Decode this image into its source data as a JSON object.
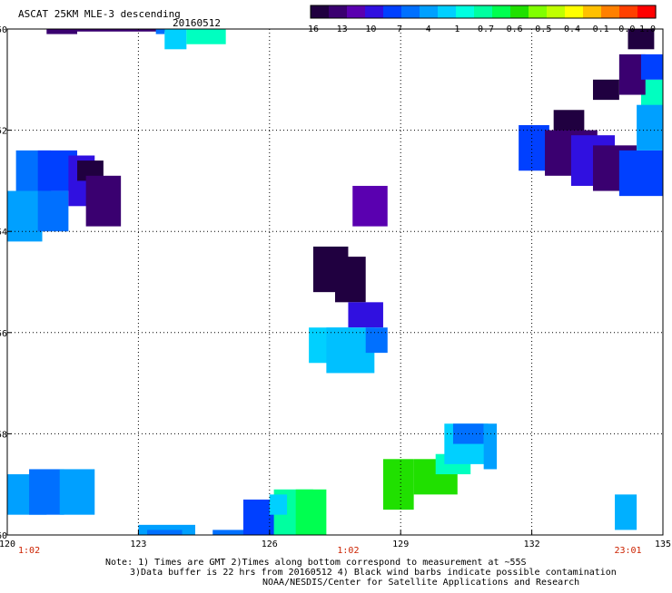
{
  "header": {
    "title": "ASCAT 25KM MLE-3 descending",
    "date": "20160512"
  },
  "colorbar": {
    "colors": [
      "#200040",
      "#3a0070",
      "#5a00b0",
      "#3010e0",
      "#0040ff",
      "#0070ff",
      "#00a0ff",
      "#00d0ff",
      "#00ffe0",
      "#00ffa0",
      "#00ff50",
      "#20e000",
      "#80ff00",
      "#c0ff00",
      "#ffff00",
      "#ffc000",
      "#ff8000",
      "#ff4000",
      "#ff0000"
    ],
    "tick_labels": [
      "-16",
      "-13",
      "-10",
      "-7",
      "-4",
      "-1",
      "-0.7",
      "-0.6",
      "-0.5",
      "-0.4",
      "-0.1",
      "0.0",
      "1.0"
    ]
  },
  "chart_data": {
    "type": "heatmap",
    "xlim": [
      120,
      135
    ],
    "ylim": [
      -60,
      -50
    ],
    "x_ticks": [
      "120",
      "123",
      "126",
      "129",
      "132",
      "135"
    ],
    "y_ticks": [
      "-50",
      "-52",
      "-54",
      "-56",
      "-58",
      "-60"
    ],
    "x_tick_values": [
      120,
      123,
      126,
      129,
      132,
      135
    ],
    "y_tick_values": [
      -50,
      -52,
      -54,
      -56,
      -58,
      -60
    ],
    "grid": true,
    "time_labels": [
      {
        "lon": 120.5,
        "text": "1:02"
      },
      {
        "lon": 127.8,
        "text": "1:02"
      },
      {
        "lon": 134.2,
        "text": "23:01"
      }
    ],
    "cells": [
      {
        "lon": [
          120.9,
          121.6
        ],
        "lat": [
          -50.0,
          -50.1
        ],
        "c": "#3a0070"
      },
      {
        "lon": [
          121.6,
          124.0
        ],
        "lat": [
          -50.0,
          -50.05
        ],
        "c": "#3a0070"
      },
      {
        "lon": [
          123.4,
          123.6
        ],
        "lat": [
          -50.0,
          -50.1
        ],
        "c": "#0070ff"
      },
      {
        "lon": [
          123.6,
          124.1
        ],
        "lat": [
          -50.0,
          -50.4
        ],
        "c": "#00d0ff"
      },
      {
        "lon": [
          124.1,
          125.0
        ],
        "lat": [
          -50.0,
          -50.3
        ],
        "c": "#00ffc0"
      },
      {
        "lon": [
          120.2,
          121.0
        ],
        "lat": [
          -52.4,
          -53.8
        ],
        "c": "#0070ff"
      },
      {
        "lon": [
          120.0,
          120.8
        ],
        "lat": [
          -53.2,
          -54.2
        ],
        "c": "#00a0ff"
      },
      {
        "lon": [
          120.7,
          121.6
        ],
        "lat": [
          -52.4,
          -53.2
        ],
        "c": "#0040ff"
      },
      {
        "lon": [
          120.7,
          121.4
        ],
        "lat": [
          -53.2,
          -54.0
        ],
        "c": "#0070ff"
      },
      {
        "lon": [
          121.4,
          122.0
        ],
        "lat": [
          -52.5,
          -53.5
        ],
        "c": "#3010e0"
      },
      {
        "lon": [
          121.6,
          122.2
        ],
        "lat": [
          -52.6,
          -53.0
        ],
        "c": "#200040"
      },
      {
        "lon": [
          121.8,
          122.6
        ],
        "lat": [
          -52.9,
          -53.9
        ],
        "c": "#3a0070"
      },
      {
        "lon": [
          127.0,
          127.8
        ],
        "lat": [
          -54.3,
          -55.2
        ],
        "c": "#200040"
      },
      {
        "lon": [
          127.5,
          128.2
        ],
        "lat": [
          -54.5,
          -55.4
        ],
        "c": "#200040"
      },
      {
        "lon": [
          127.9,
          128.7
        ],
        "lat": [
          -53.1,
          -53.9
        ],
        "c": "#5a00b0"
      },
      {
        "lon": [
          127.8,
          128.6
        ],
        "lat": [
          -55.4,
          -55.9
        ],
        "c": "#3010e0"
      },
      {
        "lon": [
          126.9,
          127.9
        ],
        "lat": [
          -55.9,
          -56.6
        ],
        "c": "#00d0ff"
      },
      {
        "lon": [
          127.3,
          128.4
        ],
        "lat": [
          -55.9,
          -56.8
        ],
        "c": "#00c0ff"
      },
      {
        "lon": [
          128.2,
          128.7
        ],
        "lat": [
          -55.9,
          -56.4
        ],
        "c": "#0070ff"
      },
      {
        "lon": [
          128.6,
          129.3
        ],
        "lat": [
          -58.5,
          -59.5
        ],
        "c": "#20e000"
      },
      {
        "lon": [
          129.3,
          130.3
        ],
        "lat": [
          -58.5,
          -59.2
        ],
        "c": "#20e000"
      },
      {
        "lon": [
          129.8,
          130.6
        ],
        "lat": [
          -58.4,
          -58.8
        ],
        "c": "#00ffc0"
      },
      {
        "lon": [
          130.0,
          131.0
        ],
        "lat": [
          -57.8,
          -58.6
        ],
        "c": "#00d0ff"
      },
      {
        "lon": [
          130.2,
          130.9
        ],
        "lat": [
          -57.8,
          -58.2
        ],
        "c": "#0070ff"
      },
      {
        "lon": [
          130.9,
          131.2
        ],
        "lat": [
          -57.8,
          -58.7
        ],
        "c": "#00a0ff"
      },
      {
        "lon": [
          120.0,
          120.9
        ],
        "lat": [
          -58.8,
          -59.6
        ],
        "c": "#00a0ff"
      },
      {
        "lon": [
          120.5,
          121.3
        ],
        "lat": [
          -58.7,
          -59.6
        ],
        "c": "#0070ff"
      },
      {
        "lon": [
          121.2,
          122.0
        ],
        "lat": [
          -58.7,
          -59.6
        ],
        "c": "#00a0ff"
      },
      {
        "lon": [
          123.0,
          124.3
        ],
        "lat": [
          -59.8,
          -60.0
        ],
        "c": "#00a0ff"
      },
      {
        "lon": [
          123.2,
          124.0
        ],
        "lat": [
          -59.9,
          -60.0
        ],
        "c": "#0070ff"
      },
      {
        "lon": [
          124.7,
          125.6
        ],
        "lat": [
          -59.9,
          -60.0
        ],
        "c": "#0070ff"
      },
      {
        "lon": [
          125.4,
          126.4
        ],
        "lat": [
          -59.3,
          -60.0
        ],
        "c": "#0040ff"
      },
      {
        "lon": [
          126.1,
          127.0
        ],
        "lat": [
          -59.1,
          -60.0
        ],
        "c": "#00ffa0"
      },
      {
        "lon": [
          126.6,
          127.3
        ],
        "lat": [
          -59.1,
          -60.0
        ],
        "c": "#00ff50"
      },
      {
        "lon": [
          126.0,
          126.4
        ],
        "lat": [
          -59.2,
          -59.6
        ],
        "c": "#00d0ff"
      },
      {
        "lon": [
          132.5,
          133.2
        ],
        "lat": [
          -51.6,
          -52.4
        ],
        "c": "#200040"
      },
      {
        "lon": [
          131.7,
          132.4
        ],
        "lat": [
          -51.9,
          -52.8
        ],
        "c": "#0040ff"
      },
      {
        "lon": [
          132.3,
          133.5
        ],
        "lat": [
          -52.0,
          -52.9
        ],
        "c": "#3a0070"
      },
      {
        "lon": [
          132.9,
          133.9
        ],
        "lat": [
          -52.1,
          -53.1
        ],
        "c": "#3010e0"
      },
      {
        "lon": [
          133.4,
          134.4
        ],
        "lat": [
          -52.3,
          -53.2
        ],
        "c": "#3a0070"
      },
      {
        "lon": [
          134.0,
          135.0
        ],
        "lat": [
          -52.4,
          -53.3
        ],
        "c": "#0040ff"
      },
      {
        "lon": [
          134.5,
          135.0
        ],
        "lat": [
          -51.0,
          -52.2
        ],
        "c": "#00ffc0"
      },
      {
        "lon": [
          134.4,
          135.0
        ],
        "lat": [
          -51.5,
          -52.4
        ],
        "c": "#00a0ff"
      },
      {
        "lon": [
          134.0,
          134.6
        ],
        "lat": [
          -50.5,
          -51.3
        ],
        "c": "#3a0070"
      },
      {
        "lon": [
          134.2,
          134.8
        ],
        "lat": [
          -50.0,
          -50.4
        ],
        "c": "#200040"
      },
      {
        "lon": [
          134.5,
          135.0
        ],
        "lat": [
          -50.5,
          -51.0
        ],
        "c": "#0040ff"
      },
      {
        "lon": [
          133.4,
          134.0
        ],
        "lat": [
          -51.0,
          -51.4
        ],
        "c": "#200040"
      },
      {
        "lon": [
          133.9,
          134.4
        ],
        "lat": [
          -59.2,
          -59.9
        ],
        "c": "#00b0ff"
      }
    ]
  },
  "footer": {
    "note_line1": "Note: 1) Times are GMT 2)Times along bottom correspond to measurement at ~55S",
    "note_line2": "3)Data buffer is 22 hrs from 20160512 4) Black wind barbs indicate possible contamination",
    "credit": "NOAA/NESDIS/Center for Satellite Applications and Research"
  }
}
